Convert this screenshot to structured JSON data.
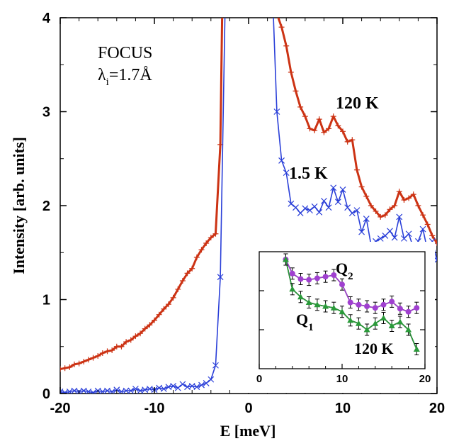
{
  "chart_data": [
    {
      "type": "line",
      "xlabel": "E [meV]",
      "ylabel": "Intensity [arb. units]",
      "xlim": [
        -20,
        20
      ],
      "ylim": [
        0,
        4
      ],
      "xticks": [
        "-20",
        "-10",
        "0",
        "10",
        "20"
      ],
      "yticks": [
        "0",
        "1",
        "2",
        "3",
        "4"
      ],
      "annotations": {
        "instrument": "FOCUS",
        "lambda_prefix": "λ",
        "lambda_sub": "i",
        "lambda_value": "=1.7Å",
        "label_120K": "120 K",
        "label_1_5K": "1.5 K"
      },
      "series": [
        {
          "name": "120 K",
          "color": "#cc3314",
          "marker": "plus",
          "x": [
            -20,
            -19.5,
            -19,
            -18.5,
            -18,
            -17.5,
            -17,
            -16.5,
            -16,
            -15.5,
            -15,
            -14.5,
            -14,
            -13.5,
            -13,
            -12.5,
            -12,
            -11.5,
            -11,
            -10.5,
            -10,
            -9.5,
            -9,
            -8.5,
            -8,
            -7.5,
            -7,
            -6.5,
            -6,
            -5.5,
            -5,
            -4.5,
            -4,
            -3.5,
            -3,
            -2.8,
            2.8,
            3.5,
            4,
            4.5,
            5,
            5.5,
            6,
            6.5,
            7,
            7.5,
            8,
            8.5,
            9,
            9.5,
            10,
            10.5,
            11,
            11.5,
            12,
            12.5,
            13,
            13.5,
            14,
            14.5,
            15,
            15.5,
            16,
            16.5,
            17,
            17.5,
            18,
            18.5,
            19,
            19.5,
            20
          ],
          "y": [
            0.26,
            0.27,
            0.28,
            0.31,
            0.32,
            0.34,
            0.36,
            0.38,
            0.4,
            0.43,
            0.45,
            0.46,
            0.5,
            0.5,
            0.55,
            0.57,
            0.61,
            0.64,
            0.69,
            0.73,
            0.78,
            0.84,
            0.9,
            0.95,
            1.02,
            1.11,
            1.2,
            1.28,
            1.33,
            1.45,
            1.53,
            1.6,
            1.66,
            1.7,
            2.65,
            4.1,
            4.1,
            3.9,
            3.7,
            3.42,
            3.22,
            3.05,
            2.95,
            2.82,
            2.8,
            2.92,
            2.78,
            2.82,
            2.95,
            2.85,
            2.79,
            2.68,
            2.7,
            2.38,
            2.2,
            2.1,
            2.0,
            1.94,
            1.88,
            1.9,
            1.96,
            2.0,
            2.15,
            2.06,
            2.08,
            2.12,
            2.0,
            1.9,
            1.8,
            1.68,
            1.6
          ]
        },
        {
          "name": "1.5 K",
          "color": "#2a3fd8",
          "marker": "x",
          "x": [
            -20,
            -19.5,
            -19,
            -18.5,
            -18,
            -17.5,
            -17,
            -16.5,
            -16,
            -15.5,
            -15,
            -14.5,
            -14,
            -13.5,
            -13,
            -12.5,
            -12,
            -11.5,
            -11,
            -10.5,
            -10,
            -9.5,
            -9,
            -8.5,
            -8,
            -7.5,
            -7,
            -6.5,
            -6,
            -5.5,
            -5,
            -4.5,
            -4,
            -3.5,
            -3,
            -2.5,
            2.6,
            3.0,
            3.5,
            4.0,
            4.5,
            5.0,
            5.5,
            6.0,
            6.5,
            7.0,
            7.5,
            8.0,
            8.5,
            9.0,
            9.5,
            10.0,
            10.5,
            11.0,
            11.5,
            12.0,
            12.5,
            13.0,
            13.5,
            14.0,
            14.5,
            15.0,
            15.5,
            16.0,
            16.5,
            17.0,
            17.5,
            18.0,
            18.5,
            19.0,
            19.5,
            20.0
          ],
          "y": [
            0.02,
            0.01,
            0.02,
            0.03,
            0.02,
            0.03,
            0.02,
            0.01,
            0.03,
            0.02,
            0.03,
            0.02,
            0.04,
            0.02,
            0.03,
            0.03,
            0.05,
            0.03,
            0.04,
            0.05,
            0.04,
            0.06,
            0.05,
            0.07,
            0.08,
            0.06,
            0.1,
            0.07,
            0.08,
            0.07,
            0.09,
            0.11,
            0.15,
            0.3,
            1.24,
            4.1,
            4.1,
            3.0,
            2.48,
            2.35,
            2.02,
            1.98,
            1.92,
            1.97,
            1.95,
            1.99,
            1.93,
            2.05,
            1.98,
            2.19,
            2.04,
            2.17,
            1.98,
            1.92,
            1.95,
            1.72,
            1.86,
            1.58,
            1.62,
            1.65,
            1.68,
            1.73,
            1.66,
            1.88,
            1.65,
            1.7,
            1.55,
            1.62,
            1.75,
            1.52,
            1.62,
            1.42
          ]
        }
      ]
    },
    {
      "type": "line",
      "inset": true,
      "xlim": [
        0,
        20
      ],
      "xticks": [
        "0",
        "10",
        "20"
      ],
      "annotations": {
        "label_Q2": "Q",
        "sub_Q2": "2",
        "label_Q1": "Q",
        "sub_Q1": "1",
        "label_120K": "120 K"
      },
      "series": [
        {
          "name": "Q2",
          "color": "#a040d0",
          "marker": "circle",
          "x": [
            3.2,
            4,
            5,
            6,
            7,
            8,
            9,
            10,
            11,
            12,
            13,
            14,
            15,
            16,
            17,
            18,
            19
          ],
          "y": [
            2.0,
            1.82,
            1.75,
            1.74,
            1.76,
            1.78,
            1.8,
            1.68,
            1.45,
            1.42,
            1.4,
            1.38,
            1.42,
            1.46,
            1.37,
            1.33,
            1.38
          ]
        },
        {
          "name": "Q1",
          "color": "#2a9a3a",
          "marker": "triangle",
          "x": [
            3.2,
            4,
            5,
            6,
            7,
            8,
            9,
            10,
            11,
            12,
            13,
            14,
            15,
            16,
            17,
            18,
            19
          ],
          "y": [
            2.0,
            1.62,
            1.52,
            1.45,
            1.42,
            1.4,
            1.38,
            1.33,
            1.22,
            1.18,
            1.1,
            1.18,
            1.25,
            1.15,
            1.2,
            1.1,
            0.85
          ]
        }
      ]
    }
  ]
}
